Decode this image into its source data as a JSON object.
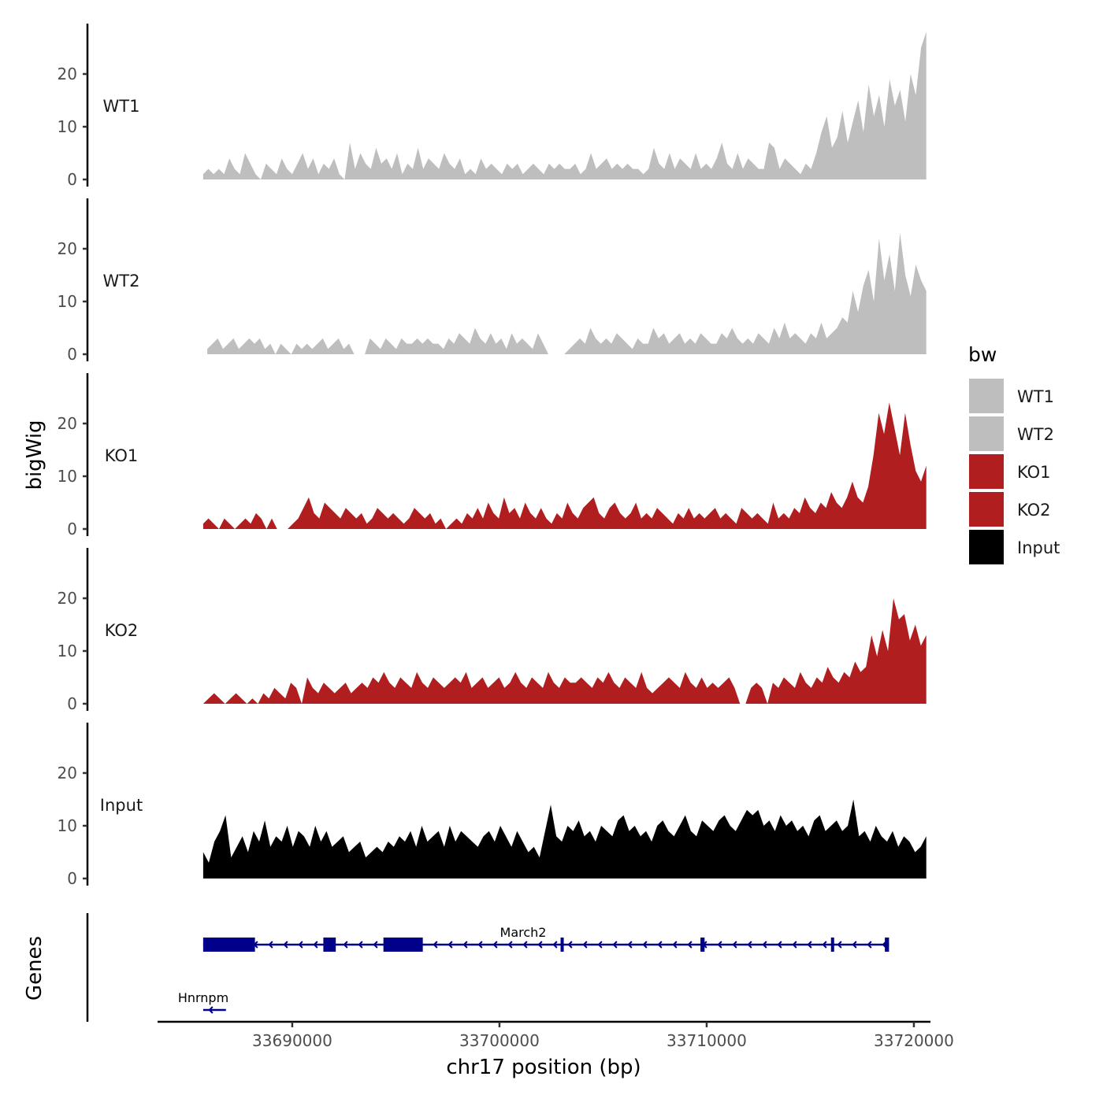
{
  "chart_data": {
    "type": "area",
    "title": "",
    "xlabel": "chr17 position (bp)",
    "ylabel": "bigWig",
    "gene_track_label": "Genes",
    "xlim": [
      33683500,
      33720800
    ],
    "x_ticks": [
      {
        "value": 33690000,
        "label": "33690000"
      },
      {
        "value": 33700000,
        "label": "33700000"
      },
      {
        "value": 33710000,
        "label": "33710000"
      },
      {
        "value": 33720000,
        "label": "33720000"
      }
    ],
    "ylim": [
      0,
      30
    ],
    "y_ticks": [
      {
        "value": 0,
        "label": "0"
      },
      {
        "value": 10,
        "label": "10"
      },
      {
        "value": 20,
        "label": "20"
      }
    ],
    "legend": {
      "title": "bw",
      "position": "right"
    },
    "series": [
      {
        "name": "WT1",
        "color": "#bebebe",
        "x_start": 33685700,
        "x_end": 33720600,
        "max": 28,
        "profile": [
          1,
          2,
          1,
          2,
          1,
          4,
          2,
          1,
          5,
          3,
          1,
          0,
          3,
          2,
          1,
          4,
          2,
          1,
          3,
          5,
          2,
          4,
          1,
          3,
          2,
          4,
          1,
          0,
          7,
          2,
          5,
          3,
          2,
          6,
          3,
          4,
          2,
          5,
          1,
          3,
          2,
          6,
          2,
          4,
          3,
          2,
          5,
          3,
          2,
          4,
          1,
          2,
          1,
          4,
          2,
          3,
          2,
          1,
          3,
          2,
          3,
          1,
          2,
          3,
          2,
          1,
          3,
          2,
          3,
          2,
          2,
          3,
          1,
          2,
          5,
          2,
          3,
          4,
          2,
          3,
          2,
          3,
          2,
          2,
          1,
          2,
          6,
          3,
          2,
          5,
          2,
          4,
          3,
          2,
          5,
          2,
          3,
          2,
          4,
          7,
          3,
          2,
          5,
          2,
          4,
          3,
          2,
          2,
          7,
          6,
          2,
          4,
          3,
          2,
          1,
          3,
          2,
          5,
          9,
          12,
          6,
          8,
          13,
          7,
          11,
          15,
          9,
          18,
          12,
          16,
          10,
          19,
          14,
          17,
          11,
          20,
          16,
          25,
          28
        ]
      },
      {
        "name": "WT2",
        "color": "#bebebe",
        "x_start": 33685900,
        "x_end": 33720600,
        "max": 23,
        "profile": [
          1,
          2,
          3,
          1,
          2,
          3,
          1,
          2,
          3,
          2,
          3,
          1,
          2,
          0,
          2,
          1,
          0,
          2,
          1,
          2,
          1,
          2,
          3,
          1,
          2,
          3,
          1,
          2,
          2,
          4,
          2,
          3,
          2,
          1,
          3,
          2,
          1,
          3,
          2,
          2,
          3,
          2,
          3,
          2,
          2,
          1,
          3,
          2,
          4,
          3,
          2,
          5,
          3,
          2,
          4,
          2,
          3,
          1,
          4,
          2,
          3,
          2,
          1,
          4,
          2,
          3,
          2,
          4,
          2,
          1,
          2,
          3,
          2,
          5,
          3,
          2,
          3,
          2,
          4,
          3,
          2,
          1,
          3,
          2,
          2,
          5,
          3,
          4,
          2,
          3,
          4,
          2,
          3,
          2,
          4,
          3,
          2,
          2,
          4,
          3,
          5,
          3,
          2,
          3,
          2,
          4,
          3,
          2,
          5,
          3,
          6,
          3,
          4,
          3,
          2,
          4,
          3,
          6,
          3,
          4,
          5,
          7,
          6,
          12,
          8,
          13,
          16,
          10,
          22,
          14,
          19,
          12,
          23,
          15,
          11,
          17,
          14,
          12
        ],
        "zero_runs": [
          [
            0.03,
            0.035
          ],
          [
            0.2,
            0.22
          ],
          [
            0.47,
            0.5
          ]
        ]
      },
      {
        "name": "KO1",
        "color": "#b11e1f",
        "x_start": 33685700,
        "x_end": 33720600,
        "max": 24,
        "profile": [
          1,
          2,
          1,
          0,
          2,
          1,
          0,
          1,
          2,
          1,
          3,
          2,
          0,
          2,
          1,
          2,
          0,
          1,
          2,
          4,
          6,
          3,
          2,
          5,
          4,
          3,
          2,
          4,
          3,
          2,
          3,
          1,
          2,
          4,
          3,
          2,
          3,
          2,
          1,
          2,
          4,
          3,
          2,
          3,
          1,
          2,
          0,
          1,
          2,
          1,
          3,
          2,
          4,
          2,
          5,
          3,
          2,
          6,
          3,
          4,
          2,
          5,
          3,
          2,
          4,
          2,
          1,
          3,
          2,
          5,
          3,
          2,
          4,
          5,
          6,
          3,
          2,
          4,
          5,
          3,
          2,
          3,
          5,
          2,
          3,
          2,
          4,
          3,
          2,
          1,
          3,
          2,
          4,
          2,
          3,
          2,
          3,
          4,
          2,
          3,
          2,
          1,
          4,
          3,
          2,
          3,
          2,
          1,
          5,
          2,
          3,
          2,
          4,
          3,
          6,
          4,
          3,
          5,
          4,
          7,
          5,
          4,
          6,
          9,
          6,
          5,
          8,
          14,
          22,
          18,
          24,
          19,
          14,
          22,
          16,
          11,
          9,
          12
        ],
        "zero_runs": [
          [
            0.1,
            0.115
          ]
        ]
      },
      {
        "name": "KO2",
        "color": "#b11e1f",
        "x_start": 33685700,
        "x_end": 33720600,
        "max": 20,
        "profile": [
          0,
          1,
          2,
          1,
          0,
          1,
          2,
          1,
          0,
          1,
          0,
          2,
          1,
          3,
          2,
          1,
          4,
          3,
          0,
          5,
          3,
          2,
          4,
          3,
          2,
          3,
          4,
          2,
          3,
          4,
          3,
          5,
          4,
          6,
          4,
          3,
          5,
          4,
          3,
          6,
          4,
          3,
          5,
          4,
          3,
          4,
          5,
          4,
          6,
          3,
          4,
          5,
          3,
          4,
          5,
          3,
          4,
          6,
          4,
          3,
          5,
          4,
          3,
          6,
          4,
          3,
          5,
          4,
          4,
          5,
          4,
          3,
          5,
          4,
          6,
          4,
          3,
          5,
          4,
          3,
          6,
          3,
          2,
          3,
          4,
          5,
          4,
          3,
          6,
          4,
          3,
          5,
          3,
          4,
          3,
          4,
          5,
          3,
          4,
          6,
          3,
          4,
          3,
          0,
          4,
          3,
          5,
          4,
          3,
          6,
          4,
          3,
          5,
          4,
          7,
          5,
          4,
          6,
          5,
          8,
          6,
          7,
          13,
          9,
          14,
          10,
          20,
          16,
          17,
          12,
          15,
          11,
          13
        ],
        "zero_runs": [
          [
            0.74,
            0.75
          ]
        ]
      },
      {
        "name": "Input",
        "color": "#000000",
        "x_start": 33685700,
        "x_end": 33720600,
        "max": 15,
        "profile": [
          5,
          3,
          7,
          9,
          12,
          4,
          6,
          8,
          5,
          9,
          7,
          11,
          6,
          8,
          7,
          10,
          6,
          9,
          8,
          6,
          10,
          7,
          9,
          6,
          7,
          8,
          5,
          6,
          7,
          4,
          5,
          6,
          5,
          7,
          6,
          8,
          7,
          9,
          6,
          10,
          7,
          8,
          9,
          6,
          10,
          7,
          9,
          8,
          7,
          6,
          8,
          9,
          7,
          10,
          8,
          6,
          9,
          7,
          5,
          6,
          4,
          9,
          14,
          8,
          7,
          10,
          9,
          11,
          8,
          9,
          7,
          10,
          9,
          8,
          11,
          12,
          9,
          10,
          8,
          9,
          7,
          10,
          11,
          9,
          8,
          10,
          12,
          9,
          8,
          11,
          10,
          9,
          11,
          12,
          10,
          9,
          11,
          13,
          12,
          13,
          10,
          11,
          9,
          12,
          10,
          11,
          9,
          10,
          8,
          11,
          12,
          9,
          10,
          11,
          9,
          10,
          15,
          8,
          9,
          7,
          10,
          8,
          7,
          9,
          6,
          8,
          7,
          5,
          6,
          8
        ]
      }
    ],
    "genes": [
      {
        "name": "March2",
        "strand": "-",
        "start": 33685700,
        "end": 33718800,
        "row": 1,
        "exons": [
          [
            33685700,
            33688200
          ],
          [
            33691500,
            33692100
          ],
          [
            33694400,
            33696300
          ],
          [
            33702950,
            33703100
          ],
          [
            33709700,
            33709900
          ],
          [
            33716000,
            33716100
          ],
          [
            33718600,
            33718800
          ]
        ]
      },
      {
        "name": "Hnrnpm",
        "strand": "-",
        "start": 33685700,
        "end": 33686800,
        "row": 2,
        "exons": []
      }
    ]
  }
}
